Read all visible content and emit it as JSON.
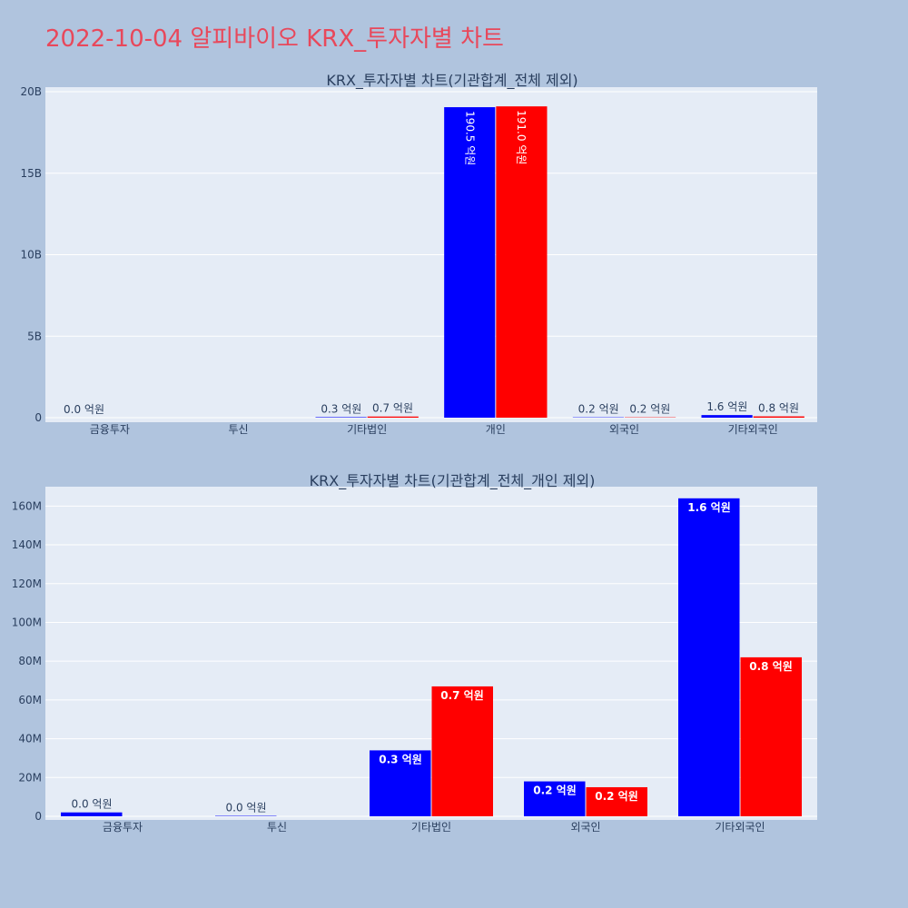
{
  "title": "2022-10-04 알피바이오 KRX_투자자별 차트",
  "colors": {
    "background": "#b0c4de",
    "plot_bg": "#e5ecf6",
    "title": "#e8485b",
    "series_a": "#0000ff",
    "series_b": "#ff0000"
  },
  "chart_data": [
    {
      "type": "bar",
      "title": "KRX_투자자별 차트(기관합계_전체 제외)",
      "categories": [
        "금융투자",
        "투신",
        "기타법인",
        "개인",
        "외국인",
        "기타외국인"
      ],
      "ylim": [
        0,
        20000000000
      ],
      "y_ticks": [
        0,
        5000000000,
        10000000000,
        15000000000,
        20000000000
      ],
      "y_tick_labels": [
        "0",
        "5B",
        "10B",
        "15B",
        "20B"
      ],
      "grid": true,
      "series": [
        {
          "color": "#0000ff",
          "values": [
            0,
            0,
            30000000,
            19050000000,
            20000000,
            160000000
          ],
          "labels": [
            "0.0 억원",
            "",
            "0.3 억원",
            "190.5 억원",
            "0.2 억원",
            "1.6 억원"
          ]
        },
        {
          "color": "#ff0000",
          "values": [
            0,
            0,
            70000000,
            19100000000,
            20000000,
            80000000
          ],
          "labels": [
            "",
            "",
            "0.7 억원",
            "191.0 억원",
            "0.2 억원",
            "0.8 억원"
          ]
        }
      ]
    },
    {
      "type": "bar",
      "title": "KRX_투자자별 차트(기관합계_전체_개인 제외)",
      "categories": [
        "금융투자",
        "투신",
        "기타법인",
        "외국인",
        "기타외국인"
      ],
      "ylim": [
        0,
        170000000
      ],
      "y_ticks": [
        0,
        20000000,
        40000000,
        60000000,
        80000000,
        100000000,
        120000000,
        140000000,
        160000000
      ],
      "y_tick_labels": [
        "0",
        "20M",
        "40M",
        "60M",
        "80M",
        "100M",
        "120M",
        "140M",
        "160M"
      ],
      "grid": true,
      "series": [
        {
          "color": "#0000ff",
          "values": [
            2000000,
            200000,
            34000000,
            18000000,
            164000000
          ],
          "labels": [
            "0.0 억원",
            "0.0 억원",
            "0.3 억원",
            "0.2 억원",
            "1.6 억원"
          ]
        },
        {
          "color": "#ff0000",
          "values": [
            0,
            0,
            67000000,
            15000000,
            82000000
          ],
          "labels": [
            "",
            "",
            "0.7 억원",
            "0.2 억원",
            "0.8 억원"
          ]
        }
      ]
    }
  ]
}
